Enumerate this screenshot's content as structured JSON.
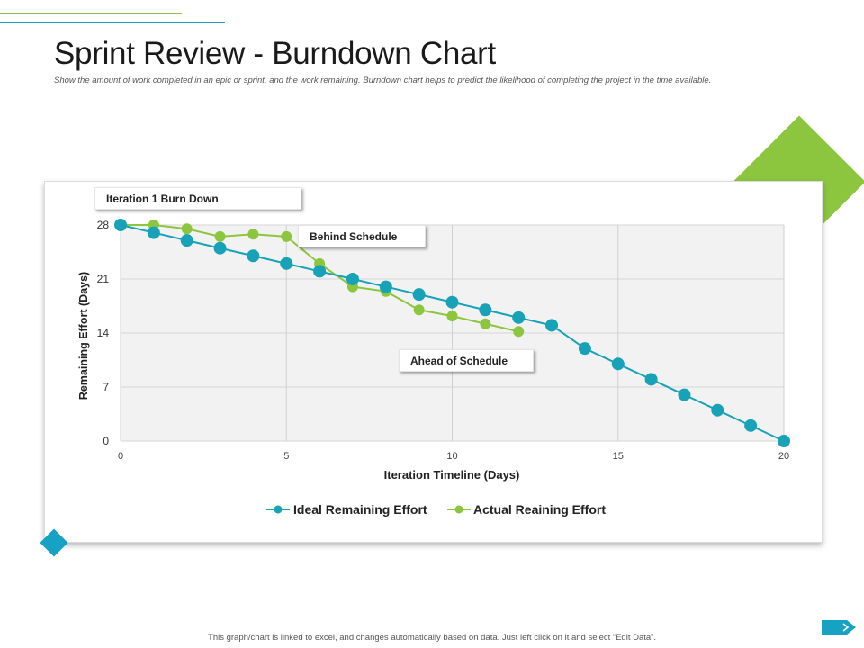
{
  "page": {
    "title": "Sprint Review - Burndown Chart",
    "subtitle": "Show the amount of work completed in an epic or sprint, and the work remaining. Burndown chart helps to predict the likelihood of completing the project in the time available.",
    "footer": "This graph/chart is linked to excel, and changes automatically  based on data. Just left click on it and select “Edit Data”.",
    "icons": {
      "next": "chevron-right-arrow-icon"
    },
    "colors": {
      "ideal": "#17a2b8",
      "actual": "#8cc63f",
      "accent_green": "#8cc63f",
      "accent_teal": "#17a2c4"
    }
  },
  "chart_data": {
    "type": "line",
    "title": "",
    "xlabel": "Iteration Timeline (Days)",
    "ylabel": "Remaining Effort (Days)",
    "xlim": [
      0,
      20
    ],
    "ylim": [
      0,
      28
    ],
    "x_ticks": [
      0,
      5,
      10,
      15,
      20
    ],
    "y_ticks": [
      0,
      7,
      14,
      21,
      28
    ],
    "grid": true,
    "legend_position": "bottom",
    "series": [
      {
        "name": "Ideal Remaining Effort",
        "color": "#17a2b8",
        "x": [
          0,
          1,
          2,
          3,
          4,
          5,
          6,
          7,
          8,
          9,
          10,
          11,
          12,
          13,
          14,
          15,
          16,
          17,
          18,
          19,
          20
        ],
        "values": [
          28,
          27,
          26,
          25,
          24,
          23,
          22,
          21,
          20,
          19,
          18,
          17,
          16,
          15,
          12,
          10,
          8,
          6,
          4,
          2,
          0
        ]
      },
      {
        "name": "Actual Reaining Effort",
        "color": "#8cc63f",
        "x": [
          0,
          1,
          2,
          3,
          4,
          5,
          6,
          7,
          8,
          9,
          10,
          11,
          12
        ],
        "values": [
          28,
          28,
          27.5,
          26.5,
          26.8,
          26.5,
          23,
          20,
          19.4,
          17,
          16.2,
          15.2,
          14.2
        ]
      }
    ],
    "annotations": [
      {
        "text": "Iteration 1 Burn Down"
      },
      {
        "text": "Behind Schedule"
      },
      {
        "text": "Ahead of Schedule"
      }
    ]
  }
}
